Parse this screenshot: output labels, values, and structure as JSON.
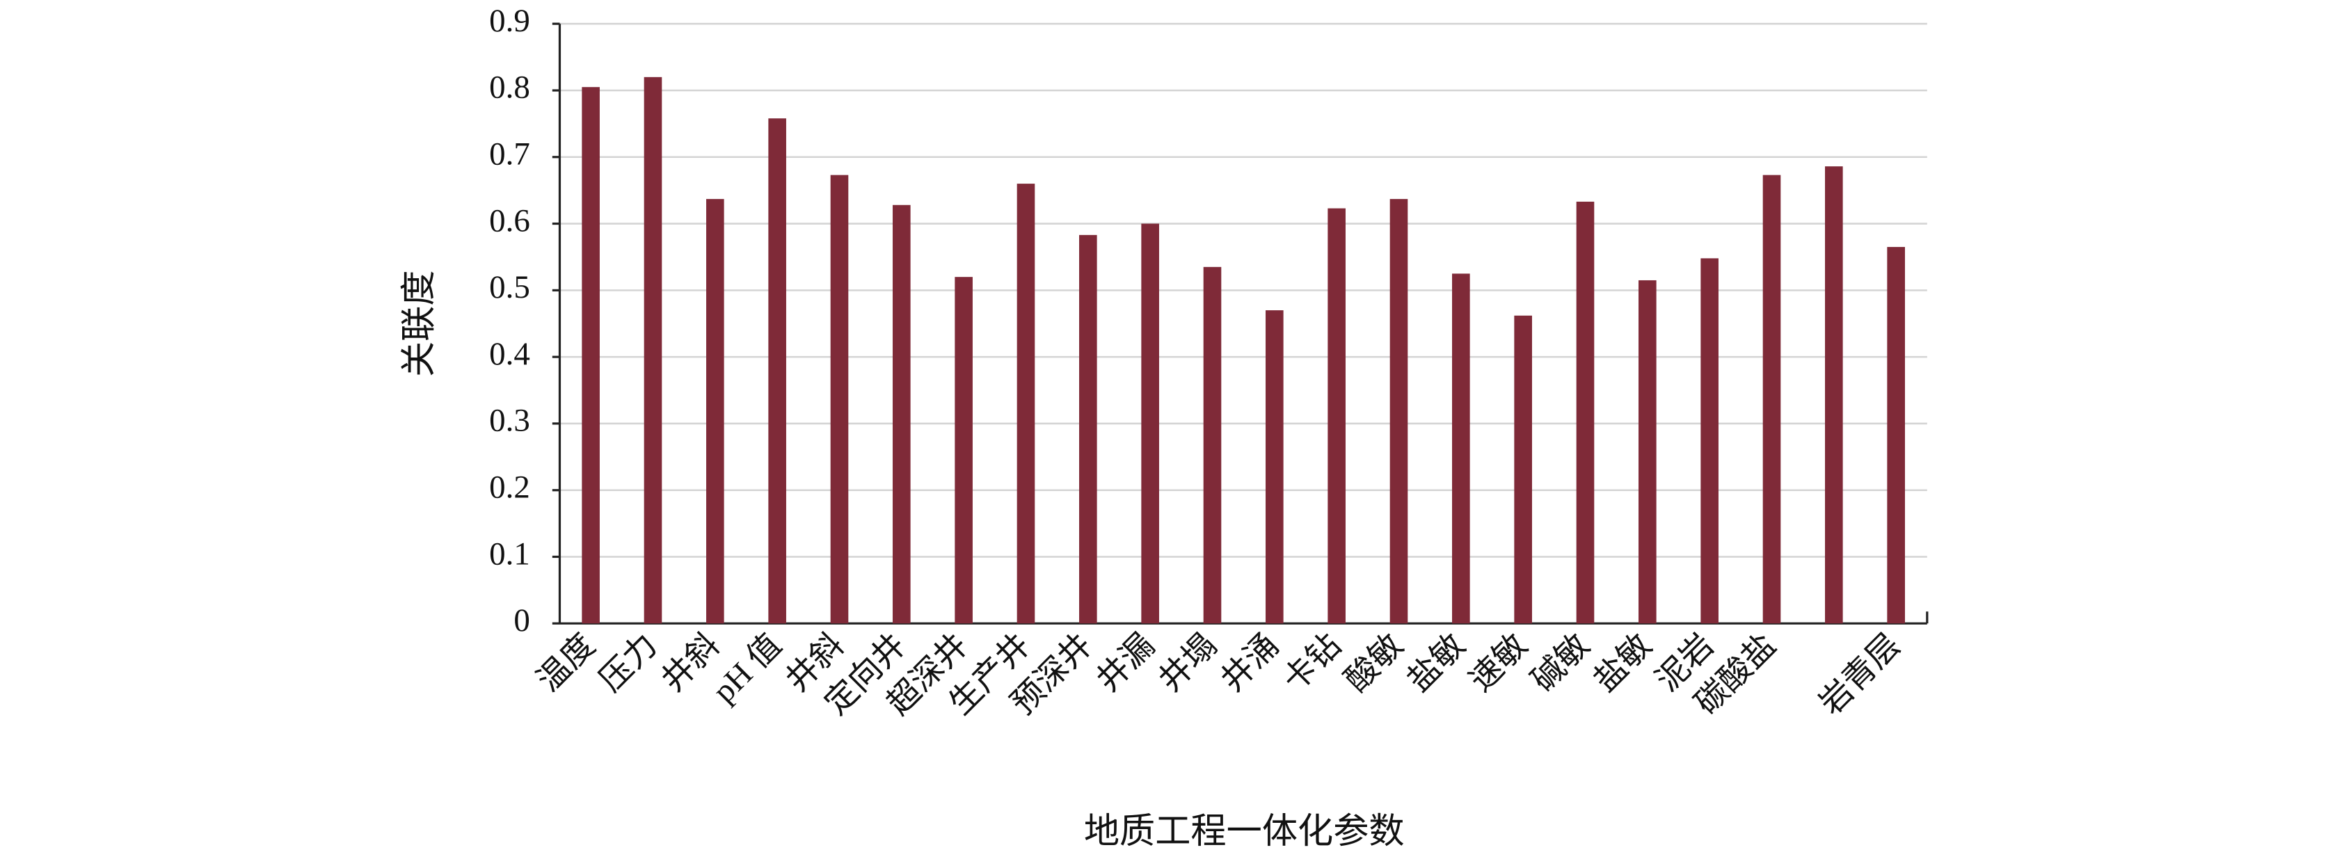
{
  "chart_data": {
    "type": "bar",
    "y_label": "关联度",
    "x_label": "地质工程一体化参数",
    "categories": [
      "温度",
      "压力",
      "井斜",
      "pH 值",
      "井斜",
      "定向井",
      "超深井",
      "生产井",
      "预深井",
      "井漏",
      "井塌",
      "井涌",
      "卡钻",
      "酸敏",
      "盐敏",
      "速敏",
      "碱敏",
      "盐敏",
      "泥岩",
      "碳酸盐",
      null,
      "岩青层"
    ],
    "values": [
      0.805,
      0.82,
      0.637,
      0.758,
      0.673,
      0.628,
      0.52,
      0.66,
      0.583,
      0.6,
      0.535,
      0.47,
      0.623,
      0.637,
      0.525,
      0.462,
      0.633,
      0.515,
      0.548,
      0.673,
      0.686,
      0.565
    ],
    "color": "#7f2a38",
    "ylim": [
      0,
      0.9
    ],
    "yticks": [
      0,
      0.1,
      0.2,
      0.3,
      0.4,
      0.5,
      0.6,
      0.7,
      0.8,
      0.9
    ],
    "grid": true
  }
}
